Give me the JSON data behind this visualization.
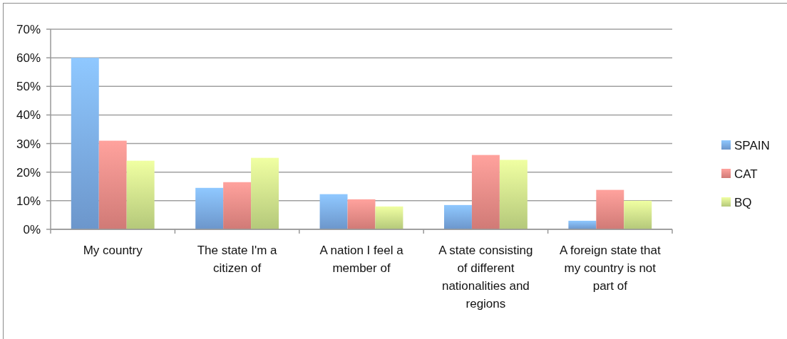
{
  "chart_data": {
    "type": "bar",
    "categories": [
      "My country",
      "The state I'm a citizen of",
      "A nation I feel a member of",
      "A state consisting of different nationalities and regions",
      "A foreign state that my country is not part of"
    ],
    "series": [
      {
        "name": "SPAIN",
        "color": "#7aaae6",
        "values": [
          60,
          14.5,
          12.3,
          8.5,
          3
        ]
      },
      {
        "name": "CAT",
        "color": "#ec8a86",
        "values": [
          31,
          16.5,
          10.5,
          26,
          13.8
        ]
      },
      {
        "name": "BQ",
        "color": "#cce38a",
        "values": [
          24,
          25,
          8,
          24.3,
          10
        ]
      }
    ],
    "ylim": [
      0,
      70
    ],
    "yticks": [
      {
        "value": 0,
        "label": "0%"
      },
      {
        "value": 10,
        "label": "10%"
      },
      {
        "value": 20,
        "label": "20%"
      },
      {
        "value": 30,
        "label": "30%"
      },
      {
        "value": 40,
        "label": "40%"
      },
      {
        "value": 50,
        "label": "50%"
      },
      {
        "value": 60,
        "label": "60%"
      },
      {
        "value": 70,
        "label": "70%"
      }
    ],
    "grid": true,
    "legend": "right"
  }
}
